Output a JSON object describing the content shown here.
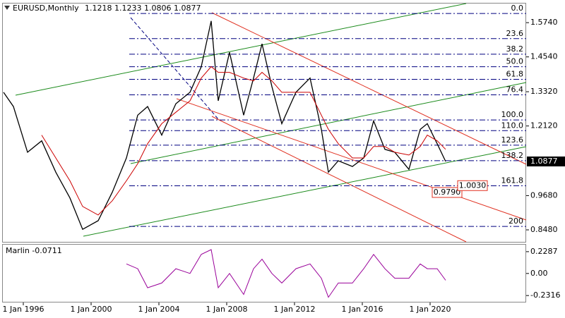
{
  "chart_data": [
    {
      "type": "line",
      "title": "EURUSD,Monthly",
      "subtitle": "1.1218 1.1233 1.0806 1.0877",
      "x": [
        "Nov 1994",
        "Jun 1995",
        "Apr 1996",
        "Feb 1997",
        "Dec 1997",
        "Oct 1998",
        "Jul 1999",
        "Jun 2000",
        "Apr 2001",
        "Feb 2002",
        "Oct 2002",
        "May 2003",
        "Mar 2004",
        "Jan 2005",
        "Nov 2005",
        "Jul 2006",
        "Feb 2007",
        "Jul 2007",
        "Mar 2008",
        "Jan 2009",
        "Aug 2009",
        "Feb 2010",
        "Sep 2010",
        "Apr 2011",
        "Feb 2012",
        "Dec 2012",
        "Aug 2013",
        "Jan 2014",
        "Aug 2014",
        "Jun 2015",
        "Feb 2016",
        "Sep 2016",
        "May 2017",
        "Dec 2017",
        "Oct 2018",
        "Jun 2019",
        "Nov 2019",
        "Jun 2020",
        "Dec 2020"
      ],
      "series": [
        {
          "color": "#000000",
          "values": [
            1.33,
            1.28,
            1.12,
            1.16,
            1.05,
            0.96,
            0.85,
            0.88,
            0.98,
            1.1,
            1.25,
            1.28,
            1.18,
            1.29,
            1.33,
            1.42,
            1.58,
            1.3,
            1.47,
            1.25,
            1.38,
            1.5,
            1.35,
            1.22,
            1.33,
            1.38,
            1.2,
            1.05,
            1.09,
            1.07,
            1.1,
            1.23,
            1.13,
            1.12,
            1.06,
            1.2,
            1.22,
            1.15,
            1.0877
          ]
        },
        {
          "color": "#cc0000",
          "values": [
            null,
            null,
            null,
            1.18,
            1.1,
            1.02,
            0.93,
            0.9,
            0.95,
            1.02,
            1.08,
            1.15,
            1.22,
            1.26,
            1.3,
            1.38,
            1.42,
            1.4,
            1.4,
            1.38,
            1.37,
            1.4,
            1.37,
            1.33,
            1.33,
            1.33,
            1.25,
            1.2,
            1.15,
            1.1,
            1.1,
            1.14,
            1.14,
            1.12,
            1.11,
            1.14,
            1.18,
            1.16,
            1.13
          ]
        }
      ],
      "xlim": [
        "Oct 1994",
        "Sep 2025"
      ],
      "xticks": [
        "1 Jan 1996",
        "1 Jan 2000",
        "1 Jan 2004",
        "1 Jan 2008",
        "1 Jan 2012",
        "1 Jan 2016",
        "1 Jan 2020"
      ],
      "ylim": [
        0.806,
        1.641
      ],
      "yticks": [
        {
          "value": 1.574,
          "label": "1.5740"
        },
        {
          "value": 1.454,
          "label": "1.4540"
        },
        {
          "value": 1.332,
          "label": "1.3320"
        },
        {
          "value": 1.212,
          "label": "1.2120"
        },
        {
          "value": 0.968,
          "label": "0.9680"
        },
        {
          "value": 0.848,
          "label": "0.8480"
        }
      ],
      "last_value": 1.0877,
      "fib_color": "#000080",
      "levels": [
        {
          "label": "0.0",
          "value": 1.606
        },
        {
          "label": "23.6",
          "value": 1.518
        },
        {
          "label": "38.2",
          "value": 1.4635
        },
        {
          "label": "50.0",
          "value": 1.4195
        },
        {
          "label": "61.8",
          "value": 1.3755
        },
        {
          "label": "76.4",
          "value": 1.321
        },
        {
          "label": "100.0",
          "value": 1.233
        },
        {
          "label": "110.0",
          "value": 1.1957
        },
        {
          "label": "123.6",
          "value": 1.1449
        },
        {
          "label": "138.2",
          "value": 1.0905
        },
        {
          "label": "161.8",
          "value": 1.0025
        },
        {
          "label": "200",
          "value": 0.86
        }
      ],
      "annotations": [
        {
          "text": "0.9790",
          "value": 0.979
        },
        {
          "text": "1.0030",
          "value": 1.003
        }
      ]
    },
    {
      "type": "line",
      "title": "Marlin -0.0711",
      "x": [
        "Feb 2002",
        "Oct 2002",
        "May 2003",
        "Mar 2004",
        "Jan 2005",
        "Nov 2005",
        "Jul 2006",
        "Feb 2007",
        "Jul 2007",
        "Mar 2008",
        "Jan 2009",
        "Aug 2009",
        "Feb 2010",
        "Sep 2010",
        "Apr 2011",
        "Feb 2012",
        "Dec 2012",
        "Aug 2013",
        "Jan 2014",
        "Aug 2014",
        "Jun 2015",
        "Feb 2016",
        "Sep 2016",
        "May 2017",
        "Dec 2017",
        "Oct 2018",
        "Jun 2019",
        "Nov 2019",
        "Jun 2020",
        "Dec 2020"
      ],
      "color": "#990099",
      "values": [
        0.1,
        0.05,
        -0.15,
        -0.1,
        0.05,
        0.0,
        0.2,
        0.25,
        -0.15,
        0.0,
        -0.22,
        0.05,
        0.15,
        0.0,
        -0.1,
        0.05,
        0.1,
        -0.05,
        -0.25,
        -0.1,
        -0.1,
        0.05,
        0.2,
        0.05,
        -0.05,
        -0.05,
        0.1,
        0.05,
        0.05,
        -0.0711
      ],
      "ylim": [
        -0.297,
        0.302
      ],
      "yticks": [
        {
          "value": 0.2287,
          "label": "0.2287"
        },
        {
          "value": 0,
          "label": "0.00"
        },
        {
          "value": -0.2316,
          "label": "-0.2316"
        }
      ]
    }
  ]
}
